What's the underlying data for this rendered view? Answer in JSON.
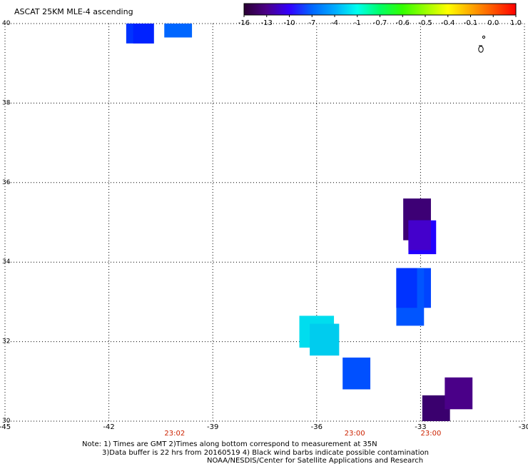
{
  "header": {
    "title": "ASCAT 25KM MLE-4 ascending"
  },
  "colorbar": {
    "labels": [
      "-16",
      "-13",
      "-10",
      "-7",
      "-4",
      "-1",
      "-0.7",
      "-0.6",
      "-0.5",
      "-0.4",
      "-0.1",
      "0.0",
      "1.0"
    ],
    "colors": [
      "#2a0033",
      "#4b0088",
      "#3300ff",
      "#0066ff",
      "#00aaff",
      "#00ffee",
      "#00ff66",
      "#33ff00",
      "#99ff00",
      "#ffff00",
      "#ffaa00",
      "#ff5500",
      "#ff0000"
    ]
  },
  "map": {
    "lon_ticks": [
      "-45",
      "-42",
      "-39",
      "-36",
      "-33",
      "-30"
    ],
    "lat_ticks": [
      "40",
      "38",
      "36",
      "34",
      "32",
      "30"
    ],
    "lon_range": [
      -45,
      -30
    ],
    "lat_range": [
      30,
      40
    ],
    "grid": "dotted",
    "time_labels": [
      {
        "text": "23:02",
        "lon": -40.1
      },
      {
        "text": "23:00",
        "lon": -34.9
      },
      {
        "text": "23:00",
        "lon": -32.7
      }
    ],
    "time_color": "#cc2200",
    "cells": [
      {
        "lon": [
          -41.5,
          -40.7
        ],
        "lat": [
          39.5,
          40.0
        ],
        "color": "#0033ff"
      },
      {
        "lon": [
          -41.3,
          -40.7
        ],
        "lat": [
          39.5,
          40.0
        ],
        "color": "#0022ff"
      },
      {
        "lon": [
          -40.4,
          -39.6
        ],
        "lat": [
          39.65,
          40.0
        ],
        "color": "#0066ff"
      },
      {
        "lon": [
          -33.5,
          -32.7
        ],
        "lat": [
          34.55,
          35.6
        ],
        "color": "#3d0075"
      },
      {
        "lon": [
          -33.35,
          -32.55
        ],
        "lat": [
          34.2,
          35.05
        ],
        "color": "#2200ff"
      },
      {
        "lon": [
          -33.35,
          -32.7
        ],
        "lat": [
          34.3,
          35.05
        ],
        "color": "#4400cc"
      },
      {
        "lon": [
          -33.7,
          -32.7
        ],
        "lat": [
          32.85,
          33.85
        ],
        "color": "#0044ff"
      },
      {
        "lon": [
          -33.7,
          -32.9
        ],
        "lat": [
          32.4,
          33.85
        ],
        "color": "#0055ff"
      },
      {
        "lon": [
          -33.7,
          -33.1
        ],
        "lat": [
          32.85,
          33.85
        ],
        "color": "#0033ff"
      },
      {
        "lon": [
          -36.5,
          -35.5
        ],
        "lat": [
          31.85,
          32.65
        ],
        "color": "#00ddee"
      },
      {
        "lon": [
          -36.2,
          -35.35
        ],
        "lat": [
          31.65,
          32.45
        ],
        "color": "#00ccee"
      },
      {
        "lon": [
          -35.25,
          -34.45
        ],
        "lat": [
          30.8,
          31.6
        ],
        "color": "#0050ff"
      },
      {
        "lon": [
          -32.95,
          -32.15
        ],
        "lat": [
          30.0,
          30.65
        ],
        "color": "#3a006e"
      },
      {
        "lon": [
          -32.3,
          -31.5
        ],
        "lat": [
          30.3,
          31.1
        ],
        "color": "#4a0088"
      }
    ]
  },
  "notes": {
    "line1": "Note: 1) Times are GMT  2)Times along bottom correspond to measurement at 35N",
    "line2": "3)Data buffer is 22 hrs from 20160519  4) Black wind barbs indicate possible contamination",
    "line3": "NOAA/NESDIS/Center for Satellite Applications and Research"
  }
}
